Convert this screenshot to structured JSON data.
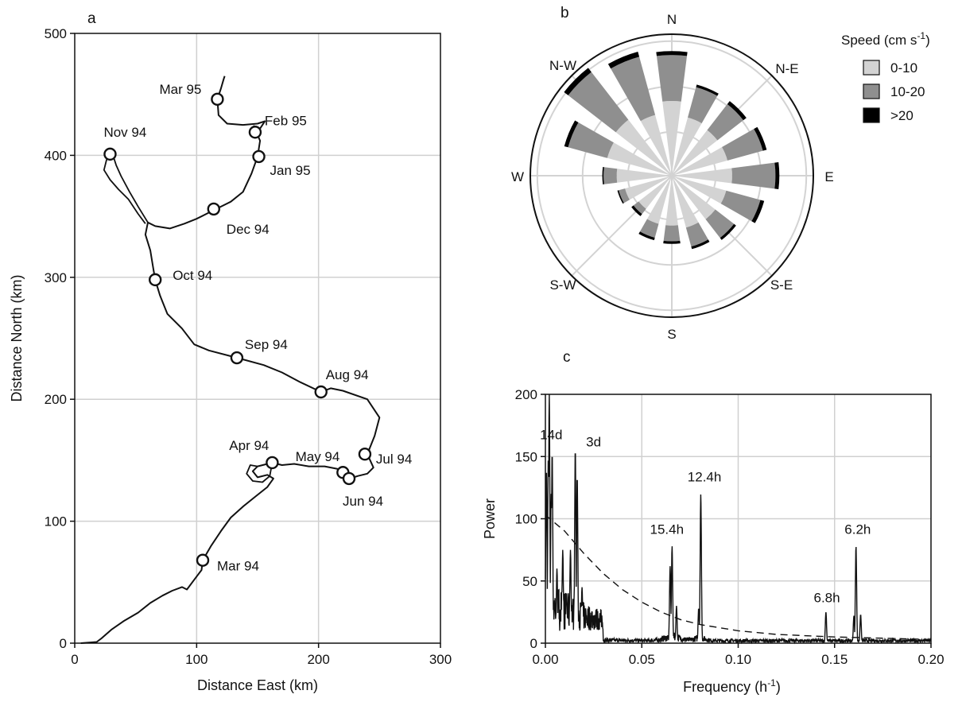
{
  "chart_data": [
    {
      "panel": "a",
      "type": "line",
      "xlabel": "Distance East (km)",
      "ylabel": "Distance North (km)",
      "xlim": [
        0,
        300
      ],
      "ylim": [
        0,
        500
      ],
      "xticks": [
        "0",
        "100",
        "200",
        "300"
      ],
      "yticks": [
        "0",
        "100",
        "200",
        "300",
        "400",
        "500"
      ],
      "grid": true,
      "track": [
        [
          5,
          0
        ],
        [
          18,
          1
        ],
        [
          22,
          4
        ],
        [
          30,
          11
        ],
        [
          40,
          18
        ],
        [
          52,
          25
        ],
        [
          62,
          33
        ],
        [
          72,
          39
        ],
        [
          80,
          43
        ],
        [
          88,
          46
        ],
        [
          92,
          44
        ],
        [
          98,
          52
        ],
        [
          104,
          60
        ],
        [
          105,
          68
        ],
        [
          112,
          80
        ],
        [
          120,
          92
        ],
        [
          128,
          103
        ],
        [
          138,
          112
        ],
        [
          148,
          120
        ],
        [
          158,
          128
        ],
        [
          163,
          135
        ],
        [
          158,
          138
        ],
        [
          150,
          136
        ],
        [
          146,
          141
        ],
        [
          150,
          145
        ],
        [
          158,
          147
        ],
        [
          162,
          148
        ],
        [
          170,
          146
        ],
        [
          180,
          147
        ],
        [
          192,
          145
        ],
        [
          205,
          145
        ],
        [
          215,
          143
        ],
        [
          222,
          140
        ],
        [
          226,
          135
        ],
        [
          232,
          137
        ],
        [
          240,
          139
        ],
        [
          245,
          144
        ],
        [
          240,
          155
        ],
        [
          246,
          170
        ],
        [
          250,
          185
        ],
        [
          240,
          200
        ],
        [
          220,
          207
        ],
        [
          210,
          209
        ],
        [
          202,
          206
        ],
        [
          185,
          214
        ],
        [
          170,
          222
        ],
        [
          155,
          228
        ],
        [
          133,
          234
        ],
        [
          110,
          240
        ],
        [
          98,
          245
        ],
        [
          88,
          258
        ],
        [
          76,
          270
        ],
        [
          70,
          285
        ],
        [
          66,
          298
        ],
        [
          64,
          310
        ],
        [
          62,
          322
        ],
        [
          58,
          335
        ],
        [
          60,
          345
        ],
        [
          66,
          342
        ],
        [
          78,
          340
        ],
        [
          90,
          344
        ],
        [
          100,
          348
        ],
        [
          114,
          355
        ],
        [
          128,
          362
        ],
        [
          138,
          370
        ],
        [
          145,
          385
        ],
        [
          150,
          399
        ],
        [
          152,
          412
        ],
        [
          149,
          419
        ],
        [
          147,
          424
        ],
        [
          152,
          422
        ],
        [
          156,
          428
        ],
        [
          150,
          426
        ],
        [
          138,
          425
        ],
        [
          125,
          426
        ],
        [
          118,
          433
        ],
        [
          117,
          446
        ],
        [
          120,
          455
        ],
        [
          122,
          462
        ],
        [
          123,
          465
        ]
      ],
      "nov_loop": [
        [
          60,
          345
        ],
        [
          52,
          358
        ],
        [
          45,
          370
        ],
        [
          38,
          383
        ],
        [
          34,
          392
        ],
        [
          32,
          398
        ],
        [
          28,
          401
        ],
        [
          26,
          396
        ],
        [
          24,
          388
        ],
        [
          29,
          380
        ],
        [
          36,
          372
        ],
        [
          44,
          364
        ],
        [
          52,
          352
        ],
        [
          58,
          344
        ]
      ],
      "april_loop": [
        [
          150,
          145
        ],
        [
          144,
          146
        ],
        [
          141,
          139
        ],
        [
          146,
          133
        ],
        [
          154,
          132
        ],
        [
          160,
          137
        ],
        [
          162,
          148
        ]
      ],
      "markers": [
        {
          "label": "Mar 94",
          "x": 105,
          "y": 68
        },
        {
          "label": "Apr 94",
          "x": 162,
          "y": 148
        },
        {
          "label": "May 94",
          "x": 220,
          "y": 140
        },
        {
          "label": "Jun 94",
          "x": 225,
          "y": 135
        },
        {
          "label": "Jul 94",
          "x": 238,
          "y": 155
        },
        {
          "label": "Aug 94",
          "x": 202,
          "y": 206
        },
        {
          "label": "Sep 94",
          "x": 133,
          "y": 234
        },
        {
          "label": "Oct 94",
          "x": 66,
          "y": 298
        },
        {
          "label": "Nov 94",
          "x": 29,
          "y": 401
        },
        {
          "label": "Dec 94",
          "x": 114,
          "y": 356
        },
        {
          "label": "Jan 95",
          "x": 151,
          "y": 399
        },
        {
          "label": "Feb 95",
          "x": 148,
          "y": 419
        },
        {
          "label": "Mar 95",
          "x": 117,
          "y": 446
        }
      ]
    },
    {
      "panel": "b",
      "type": "rose",
      "directions": [
        "N",
        "N-E",
        "E",
        "S-E",
        "S",
        "S-W",
        "W",
        "N-W"
      ],
      "legend_title": "Speed (cm s",
      "legend_superscript": "-1",
      "legend_close": ")",
      "bins": [
        "0-10",
        "10-20",
        ">20"
      ],
      "colors": [
        "#d3d3d3",
        "#8f8f8f",
        "#000000"
      ],
      "sectors": [
        {
          "angle": 0,
          "values": [
            0.57,
            0.92,
            0.95
          ]
        },
        {
          "angle": 22.5,
          "values": [
            0.46,
            0.7,
            0.72
          ]
        },
        {
          "angle": 45,
          "values": [
            0.44,
            0.69,
            0.72
          ]
        },
        {
          "angle": 67.5,
          "values": [
            0.44,
            0.72,
            0.75
          ]
        },
        {
          "angle": 90,
          "values": [
            0.46,
            0.79,
            0.82
          ]
        },
        {
          "angle": 112.5,
          "values": [
            0.43,
            0.7,
            0.73
          ]
        },
        {
          "angle": 135,
          "values": [
            0.42,
            0.6,
            0.62
          ]
        },
        {
          "angle": 157.5,
          "values": [
            0.41,
            0.56,
            0.58
          ]
        },
        {
          "angle": 180,
          "values": [
            0.38,
            0.5,
            0.52
          ]
        },
        {
          "angle": 202.5,
          "values": [
            0.38,
            0.49,
            0.51
          ]
        },
        {
          "angle": 225,
          "values": [
            0.32,
            0.37,
            0.39
          ]
        },
        {
          "angle": 247.5,
          "values": [
            0.37,
            0.42,
            0.43
          ]
        },
        {
          "angle": 270,
          "values": [
            0.42,
            0.52,
            0.53
          ]
        },
        {
          "angle": 292.5,
          "values": [
            0.51,
            0.82,
            0.85
          ]
        },
        {
          "angle": 315,
          "values": [
            0.54,
            1.0,
            1.04
          ]
        },
        {
          "angle": 337.5,
          "values": [
            0.48,
            0.94,
            0.98
          ]
        }
      ]
    },
    {
      "panel": "c",
      "type": "line",
      "xlabel": "Frequency (h",
      "xlabel_superscript": "-1",
      "xlabel_close": ")",
      "ylabel": "Power",
      "xlim": [
        0,
        0.2
      ],
      "ylim": [
        0,
        200
      ],
      "xticks": [
        "0.00",
        "0.05",
        "0.10",
        "0.15",
        "0.20"
      ],
      "yticks": [
        "0",
        "50",
        "100",
        "150",
        "200"
      ],
      "grid": true,
      "peaks": [
        {
          "x": 0.0005,
          "y": 140
        },
        {
          "x": 0.0015,
          "y": 150
        },
        {
          "x": 0.003,
          "y": 120
        },
        {
          "x": 0.002,
          "y": 200
        },
        {
          "x": 0.0035,
          "y": 153
        },
        {
          "x": 0.006,
          "y": 60
        },
        {
          "x": 0.009,
          "y": 75
        },
        {
          "x": 0.011,
          "y": 40
        },
        {
          "x": 0.013,
          "y": 75
        },
        {
          "x": 0.0155,
          "y": 156
        },
        {
          "x": 0.0165,
          "y": 134
        },
        {
          "x": 0.019,
          "y": 45
        },
        {
          "x": 0.0647,
          "y": 62
        },
        {
          "x": 0.0657,
          "y": 78
        },
        {
          "x": 0.068,
          "y": 30
        },
        {
          "x": 0.0795,
          "y": 28
        },
        {
          "x": 0.0806,
          "y": 120
        },
        {
          "x": 0.1455,
          "y": 25
        },
        {
          "x": 0.16,
          "y": 22
        },
        {
          "x": 0.1611,
          "y": 78
        },
        {
          "x": 0.1635,
          "y": 23
        }
      ],
      "confidence_curve": [
        [
          0.0,
          103
        ],
        [
          0.01,
          90
        ],
        [
          0.02,
          72
        ],
        [
          0.03,
          56
        ],
        [
          0.04,
          43
        ],
        [
          0.05,
          33
        ],
        [
          0.06,
          25
        ],
        [
          0.07,
          19
        ],
        [
          0.08,
          15
        ],
        [
          0.1,
          10
        ],
        [
          0.12,
          7
        ],
        [
          0.15,
          5
        ],
        [
          0.2,
          3
        ]
      ],
      "annotations": [
        {
          "text": "14d",
          "x": 0.003,
          "y": 164
        },
        {
          "text": "3d",
          "x": 0.025,
          "y": 158
        },
        {
          "text": "15.4h",
          "x": 0.063,
          "y": 88
        },
        {
          "text": "12.4h",
          "x": 0.0825,
          "y": 130
        },
        {
          "text": "6.8h",
          "x": 0.146,
          "y": 33
        },
        {
          "text": "6.2h",
          "x": 0.162,
          "y": 88
        }
      ]
    }
  ],
  "panel_labels": {
    "a": "a",
    "b": "b",
    "c": "c"
  }
}
